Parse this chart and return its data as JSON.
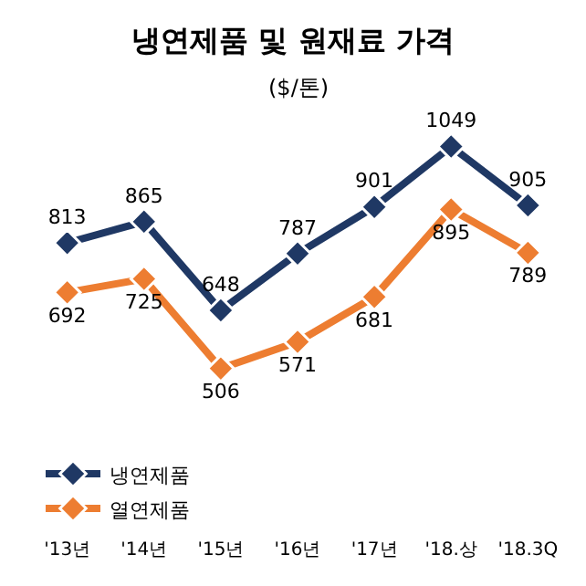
{
  "chart_data": {
    "type": "line",
    "title": "냉연제품 및 원재료 가격",
    "subtitle": "($/톤)",
    "categories": [
      "'13년",
      "'14년",
      "'15년",
      "'16년",
      "'17년",
      "'18.상",
      "'18.3Q"
    ],
    "series": [
      {
        "name": "냉연제품",
        "color": "#1f3864",
        "values": [
          813,
          865,
          648,
          787,
          901,
          1049,
          905
        ]
      },
      {
        "name": "열연제품",
        "color": "#ed7d31",
        "values": [
          692,
          725,
          506,
          571,
          681,
          895,
          789
        ]
      }
    ],
    "data_labels": true,
    "marker": "diamond",
    "legend": "bottom left",
    "grid": false
  }
}
